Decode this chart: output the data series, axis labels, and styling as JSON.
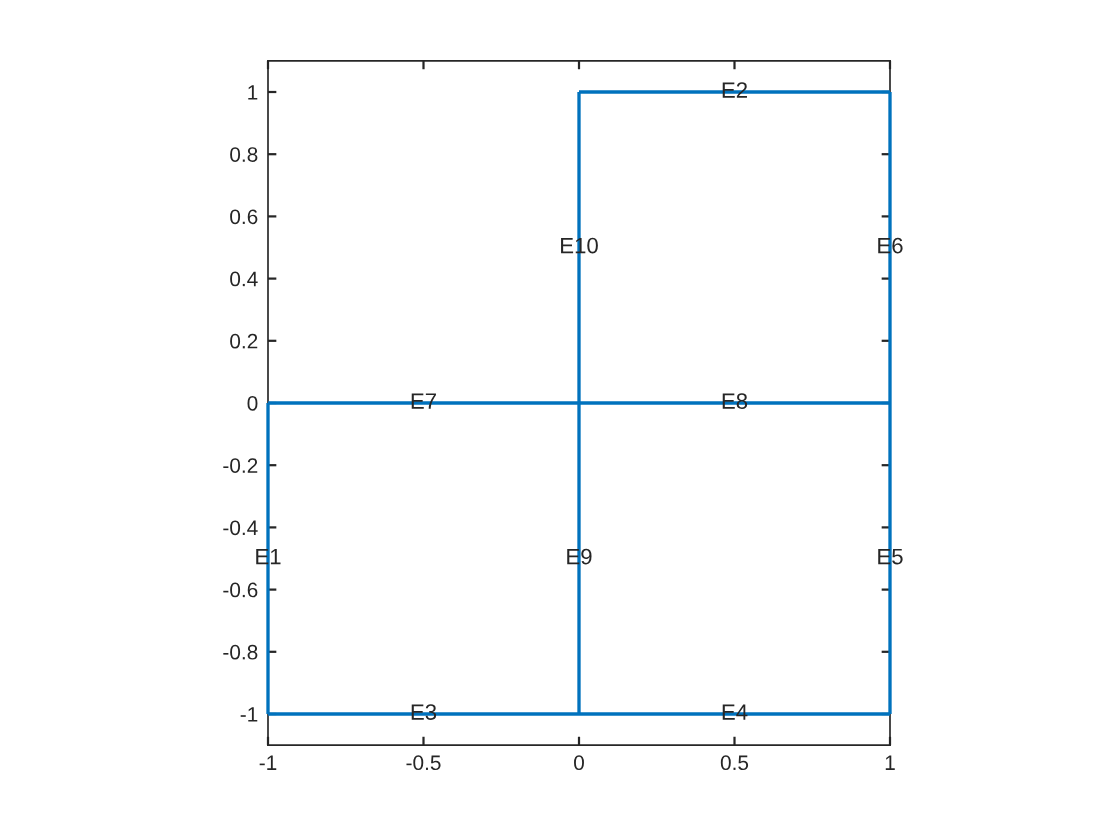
{
  "chart_data": {
    "type": "line",
    "xlim": [
      -1,
      1
    ],
    "ylim": [
      -1.1,
      1.1
    ],
    "xticks": [
      -1,
      -0.5,
      0,
      0.5,
      1
    ],
    "yticks": [
      -1,
      -0.8,
      -0.6,
      -0.4,
      -0.2,
      0,
      0.2,
      0.4,
      0.6,
      0.8,
      1
    ],
    "grid": false,
    "legend": false,
    "marker": "none",
    "line_style": "solid",
    "series": [
      {
        "color": "#0072bd",
        "x": [
          -1,
          -1
        ],
        "values": [
          -1,
          0
        ]
      },
      {
        "color": "#0072bd",
        "x": [
          0,
          1
        ],
        "values": [
          1,
          1
        ]
      },
      {
        "color": "#0072bd",
        "x": [
          -1,
          0,
          1
        ],
        "values": [
          -1,
          -1,
          -1
        ]
      },
      {
        "color": "#0072bd",
        "x": [
          1,
          1,
          1
        ],
        "values": [
          -1,
          0,
          1
        ]
      },
      {
        "color": "#0072bd",
        "x": [
          -1,
          0,
          1
        ],
        "values": [
          0,
          0,
          0
        ]
      },
      {
        "color": "#0072bd",
        "x": [
          0,
          0,
          0
        ],
        "values": [
          -1,
          0,
          1
        ]
      }
    ],
    "annotations": [
      {
        "text": "E1",
        "x": -1,
        "y": -0.5
      },
      {
        "text": "E2",
        "x": 0.5,
        "y": 1
      },
      {
        "text": "E3",
        "x": -0.5,
        "y": -1
      },
      {
        "text": "E4",
        "x": 0.5,
        "y": -1
      },
      {
        "text": "E5",
        "x": 1,
        "y": -0.5
      },
      {
        "text": "E6",
        "x": 1,
        "y": 0.5
      },
      {
        "text": "E7",
        "x": -0.5,
        "y": 0
      },
      {
        "text": "E8",
        "x": 0.5,
        "y": 0
      },
      {
        "text": "E9",
        "x": 0,
        "y": -0.5
      },
      {
        "text": "E10",
        "x": 0,
        "y": 0.5
      }
    ]
  }
}
